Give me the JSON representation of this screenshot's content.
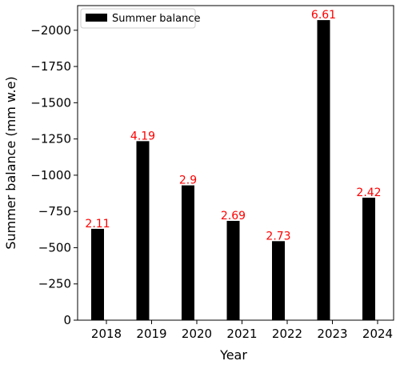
{
  "chart_data": {
    "type": "bar",
    "title": "",
    "xlabel": "Year",
    "ylabel": "Summer balance (mm w.e)",
    "y_inverted": true,
    "ylim": [
      0,
      -2170
    ],
    "yticks": [
      0,
      -250,
      -500,
      -750,
      -1000,
      -1250,
      -1500,
      -1750,
      -2000
    ],
    "ytick_labels": [
      "0",
      "−250",
      "−500",
      "−750",
      "−1000",
      "−1250",
      "−1500",
      "−1750",
      "−2000"
    ],
    "xtick_labels": [
      "2018",
      "2019",
      "2020",
      "2021",
      "2022",
      "2023",
      "2024"
    ],
    "series": [
      {
        "name": "Summer balance",
        "color": "#000000",
        "values": [
          -630,
          -1235,
          -930,
          -685,
          -545,
          -2070,
          -845
        ],
        "bar_labels": [
          "2.11",
          "4.19",
          "2.9",
          "2.69",
          "2.73",
          "6.61",
          "2.42"
        ],
        "label_color": "#ff0000"
      }
    ],
    "legend": {
      "position": "top-left"
    },
    "grid": false
  }
}
